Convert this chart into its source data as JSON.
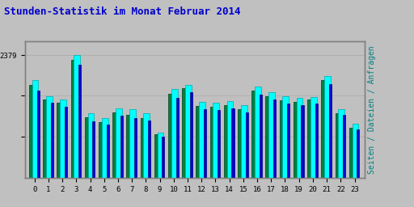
{
  "title": "Stunden-Statistik im Monat Februar 2014",
  "title_color": "#0000cc",
  "title_fontsize": 9,
  "ylabel_right": "Seiten / Dateien / Anfragen",
  "ylabel_right_color": "#008080",
  "ylabel_right_fontsize": 7,
  "background_color": "#c0c0c0",
  "plot_bg_color": "#c0c0c0",
  "hours": [
    0,
    1,
    2,
    3,
    4,
    5,
    6,
    7,
    8,
    9,
    10,
    11,
    12,
    13,
    14,
    15,
    16,
    17,
    18,
    19,
    20,
    21,
    22,
    23
  ],
  "seiten": [
    1900,
    1580,
    1530,
    2379,
    1260,
    1170,
    1350,
    1330,
    1250,
    880,
    1720,
    1800,
    1470,
    1460,
    1490,
    1420,
    1780,
    1660,
    1580,
    1560,
    1570,
    1980,
    1330,
    1060
  ],
  "dateien": [
    1700,
    1460,
    1390,
    2200,
    1100,
    1040,
    1210,
    1170,
    1110,
    810,
    1560,
    1660,
    1340,
    1320,
    1350,
    1270,
    1620,
    1520,
    1450,
    1420,
    1450,
    1820,
    1220,
    940
  ],
  "anfragen": [
    1800,
    1520,
    1460,
    2290,
    1180,
    1090,
    1270,
    1230,
    1160,
    845,
    1640,
    1740,
    1400,
    1380,
    1420,
    1340,
    1700,
    1580,
    1510,
    1480,
    1520,
    1900,
    1250,
    980
  ],
  "color_seiten": "#00ffff",
  "color_dateien": "#0000cd",
  "color_anfragen": "#008040",
  "ylim_max": 2650,
  "ytick_val": 2379,
  "ytick_label": "2379",
  "grid_color": "#b0b0b0",
  "border_color": "#808080",
  "font_family": "monospace"
}
